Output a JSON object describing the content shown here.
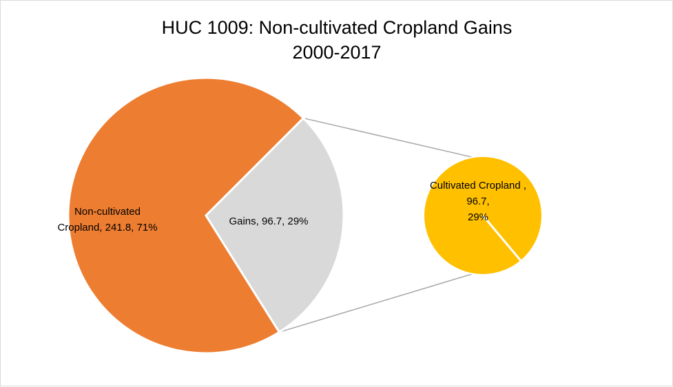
{
  "chart_data": {
    "type": "pie",
    "subtype": "pie-of-pie",
    "title_lines": [
      "HUC 1009: Non-cultivated Cropland Gains",
      "2000-2017"
    ],
    "slices": [
      {
        "name": "Non-cultivated Cropland",
        "value": 241.8,
        "percent": 71,
        "color": "#ED7D31",
        "label_lines": [
          "Non-cultivated",
          "Cropland, 241.8, 71%"
        ]
      },
      {
        "name": "Gains",
        "value": 96.7,
        "percent": 29,
        "color": "#D9D9D9",
        "label_lines": [
          "Gains, 96.7, 29%"
        ]
      }
    ],
    "secondary_pie": {
      "exploded_from": "Gains",
      "slices": [
        {
          "name": "Cultivated Cropland",
          "value": 96.7,
          "percent": 29,
          "color": "#FFC000",
          "label_lines": [
            "Cultivated Cropland ,",
            "96.7,",
            "29%"
          ]
        }
      ]
    },
    "connector_color": "#A6A6A6",
    "legend": "none"
  }
}
